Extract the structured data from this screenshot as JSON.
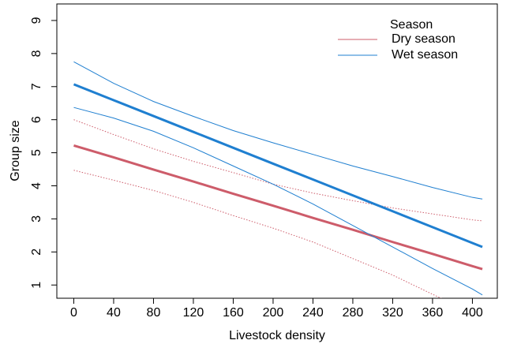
{
  "chart_data": {
    "type": "line",
    "x_label": "Livestock density",
    "y_label": "Group size",
    "legend_title": "Season",
    "legend_position": "top-right",
    "x": [
      0,
      40,
      80,
      120,
      160,
      200,
      240,
      280,
      320,
      360,
      400,
      410
    ],
    "xlim": [
      -17,
      425
    ],
    "ylim": [
      0.6,
      9.5
    ],
    "xticks": [
      0,
      40,
      80,
      120,
      160,
      200,
      240,
      280,
      320,
      360,
      400
    ],
    "yticks": [
      1,
      2,
      3,
      4,
      5,
      6,
      7,
      8,
      9
    ],
    "series": [
      {
        "name": "Dry season",
        "color": "#cd5c6a",
        "band_dashed": true,
        "values": [
          5.22,
          4.86,
          4.49,
          4.13,
          3.76,
          3.4,
          3.03,
          2.67,
          2.3,
          1.94,
          1.57,
          1.48
        ],
        "upper": [
          6.0,
          5.55,
          5.12,
          4.74,
          4.4,
          4.05,
          3.78,
          3.55,
          3.33,
          3.15,
          2.97,
          2.94
        ],
        "lower": [
          4.47,
          4.17,
          3.86,
          3.5,
          3.1,
          2.72,
          2.3,
          1.8,
          1.3,
          0.72,
          0.15,
          0.0
        ]
      },
      {
        "name": "Wet season",
        "color": "#1f7fd0",
        "band_dashed": false,
        "values": [
          7.07,
          6.59,
          6.11,
          5.63,
          5.15,
          4.67,
          4.19,
          3.71,
          3.23,
          2.75,
          2.27,
          2.15
        ],
        "upper": [
          7.75,
          7.1,
          6.55,
          6.1,
          5.67,
          5.3,
          4.95,
          4.6,
          4.28,
          3.95,
          3.65,
          3.6
        ],
        "lower": [
          6.37,
          6.05,
          5.65,
          5.15,
          4.6,
          4.05,
          3.45,
          2.8,
          2.15,
          1.5,
          0.88,
          0.7
        ]
      }
    ]
  }
}
